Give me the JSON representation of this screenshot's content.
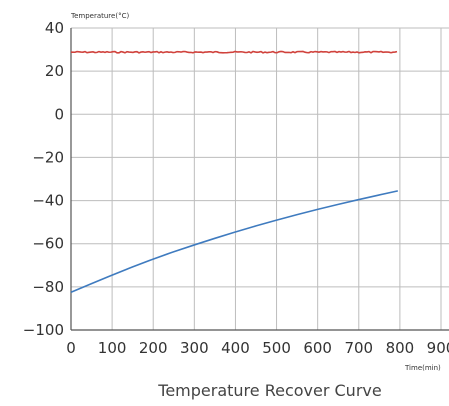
{
  "chart_data": {
    "type": "line",
    "title": "Temperature Recover Curve",
    "ylabel": "Temperature(°C)",
    "xlabel": "Time(min)",
    "xlim": [
      0,
      900
    ],
    "ylim": [
      -100,
      40
    ],
    "x_ticks": [
      0,
      100,
      200,
      300,
      400,
      500,
      600,
      700,
      800,
      900
    ],
    "y_ticks": [
      40,
      20,
      0,
      -20,
      -40,
      -60,
      -80,
      -100
    ],
    "x_tick_labels": [
      "0",
      "100",
      "200",
      "300",
      "400",
      "500",
      "600",
      "700",
      "800",
      "900"
    ],
    "y_tick_labels": [
      "40",
      "20",
      "0",
      "−20",
      "−40",
      "−60",
      "−80",
      "−100"
    ],
    "grid": true,
    "series": [
      {
        "color": "#d0423c",
        "x": [
          0,
          100,
          200,
          300,
          400,
          500,
          600,
          700,
          795
        ],
        "y": [
          28.8,
          28.7,
          28.8,
          28.7,
          28.8,
          28.7,
          28.8,
          28.7,
          28.8
        ]
      },
      {
        "color": "#3f7bbf",
        "x": [
          0,
          100,
          200,
          300,
          400,
          500,
          600,
          700,
          795
        ],
        "y": [
          -82.5,
          -74.5,
          -67,
          -60.5,
          -54.5,
          -49,
          -44,
          -39.5,
          -35.5
        ]
      }
    ]
  }
}
